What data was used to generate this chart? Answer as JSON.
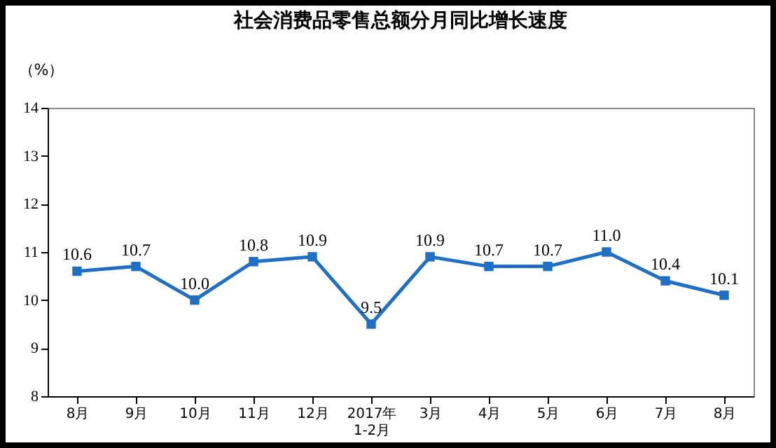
{
  "chart_data": {
    "type": "line",
    "title": "社会消费品零售总额分月同比增长速度",
    "ylabel": "（%）",
    "categories": [
      "8月",
      "9月",
      "10月",
      "11月",
      "12月",
      "2017年\n1-2月",
      "3月",
      "4月",
      "5月",
      "6月",
      "7月",
      "8月"
    ],
    "series": [
      {
        "color": "#1f6fc5",
        "values": [
          10.6,
          10.7,
          10.0,
          10.8,
          10.9,
          9.5,
          10.9,
          10.7,
          10.7,
          11.0,
          10.4,
          10.1
        ]
      }
    ],
    "value_labels": [
      "10.6",
      "10.7",
      "10.0",
      "10.8",
      "10.9",
      "9.5",
      "10.9",
      "10.7",
      "10.7",
      "11.0",
      "10.4",
      "10.1"
    ],
    "ylim": [
      8,
      14
    ],
    "yticks": [
      8,
      9,
      10,
      11,
      12,
      13,
      14
    ],
    "marker": "square",
    "line_style": "solid",
    "grid": false,
    "legend": false
  }
}
